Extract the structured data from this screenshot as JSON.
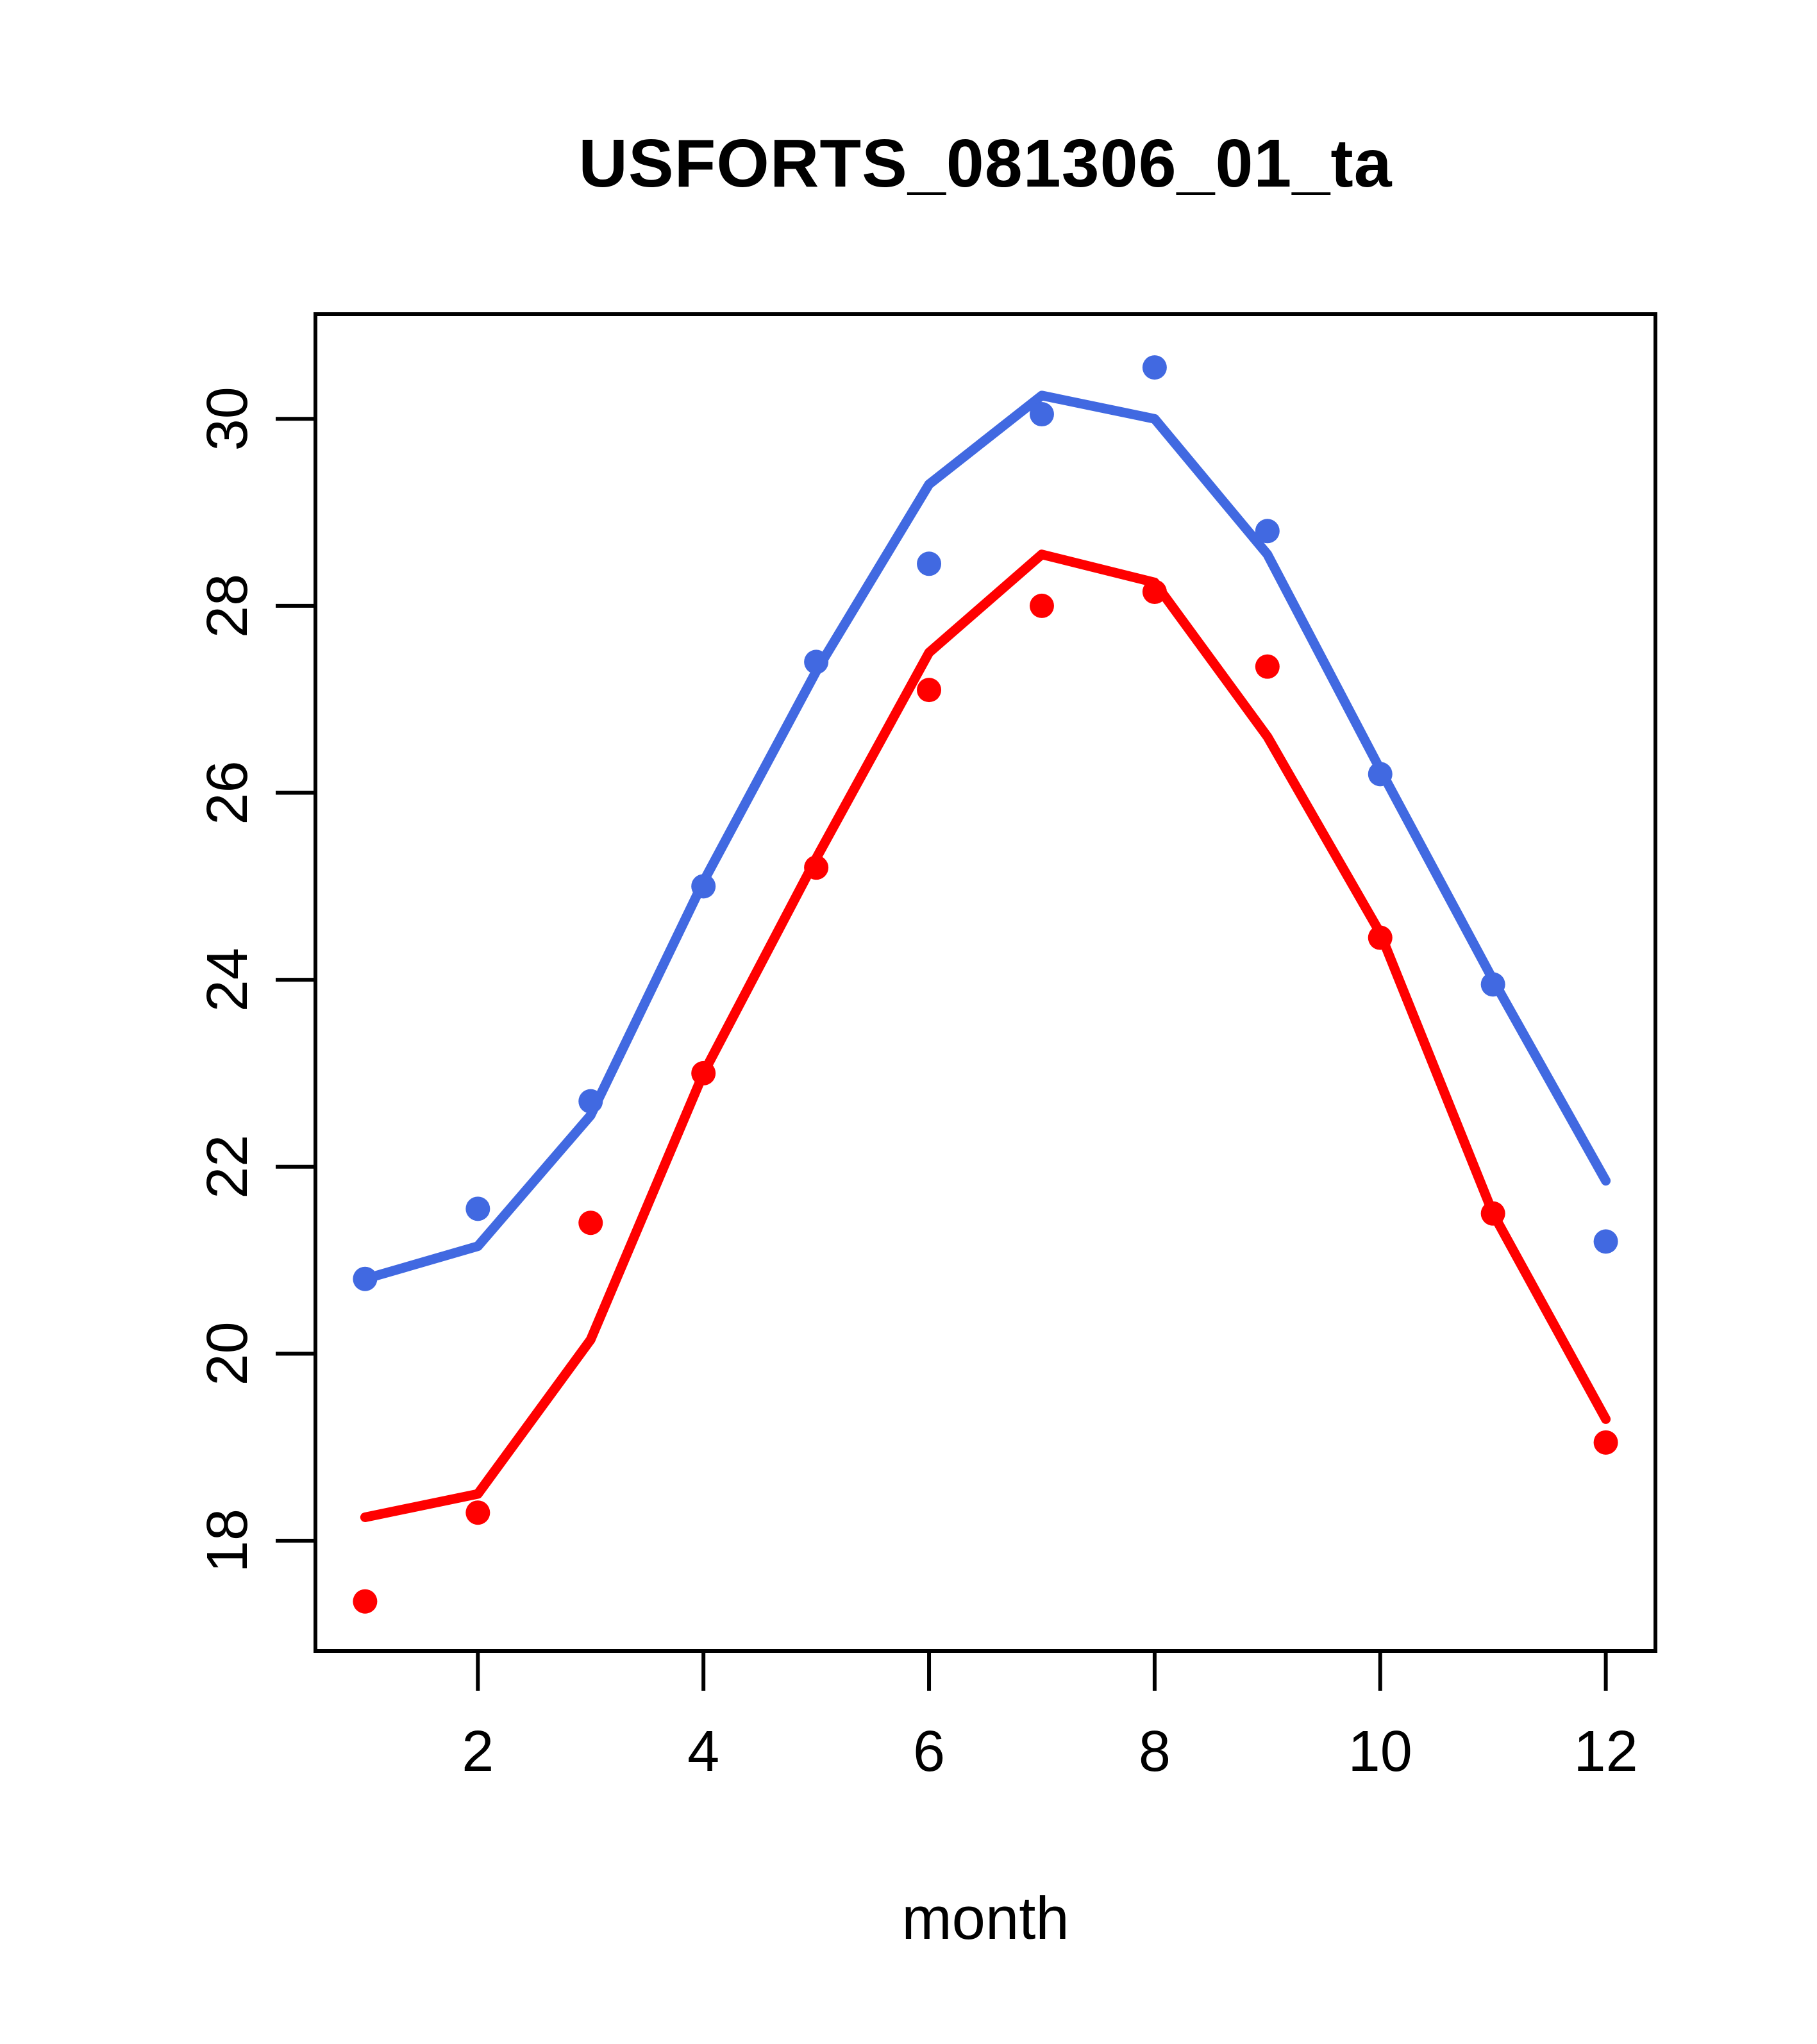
{
  "chart_data": {
    "type": "line",
    "title": "USFORTS_081306_01_ta",
    "xlabel": "month",
    "ylabel": "",
    "x": [
      1,
      2,
      3,
      4,
      5,
      6,
      7,
      8,
      9,
      10,
      11,
      12
    ],
    "x_ticks": [
      2,
      4,
      6,
      8,
      10,
      12
    ],
    "y_ticks": [
      18,
      20,
      22,
      24,
      26,
      28,
      30
    ],
    "xlim": [
      0.56,
      12.44
    ],
    "ylim": [
      16.82,
      31.12
    ],
    "grid": false,
    "legend_position": "none",
    "colors": {
      "upper_series": "#4169E1",
      "lower_series": "#FF0000",
      "axis": "#000000",
      "background": "#FFFFFF"
    },
    "series": [
      {
        "name": "upper-points-blue",
        "type": "points",
        "color": "#4169E1",
        "values": [
          20.8,
          21.55,
          22.7,
          25.0,
          27.4,
          28.45,
          30.05,
          30.55,
          28.8,
          26.2,
          23.95,
          21.2
        ]
      },
      {
        "name": "upper-line-blue",
        "type": "line",
        "color": "#4169E1",
        "values": [
          20.8,
          21.15,
          22.55,
          25.05,
          27.3,
          29.3,
          30.25,
          30.0,
          28.55,
          26.25,
          24.0,
          21.85
        ]
      },
      {
        "name": "lower-points-red",
        "type": "points",
        "color": "#FF0000",
        "values": [
          17.35,
          18.3,
          21.4,
          23.0,
          25.2,
          27.1,
          28.0,
          28.15,
          27.35,
          24.45,
          21.5,
          19.05
        ]
      },
      {
        "name": "lower-line-red",
        "type": "line",
        "color": "#FF0000",
        "values": [
          18.25,
          18.5,
          20.15,
          23.0,
          25.3,
          27.5,
          28.55,
          28.25,
          26.6,
          24.5,
          21.5,
          19.3
        ]
      }
    ]
  }
}
